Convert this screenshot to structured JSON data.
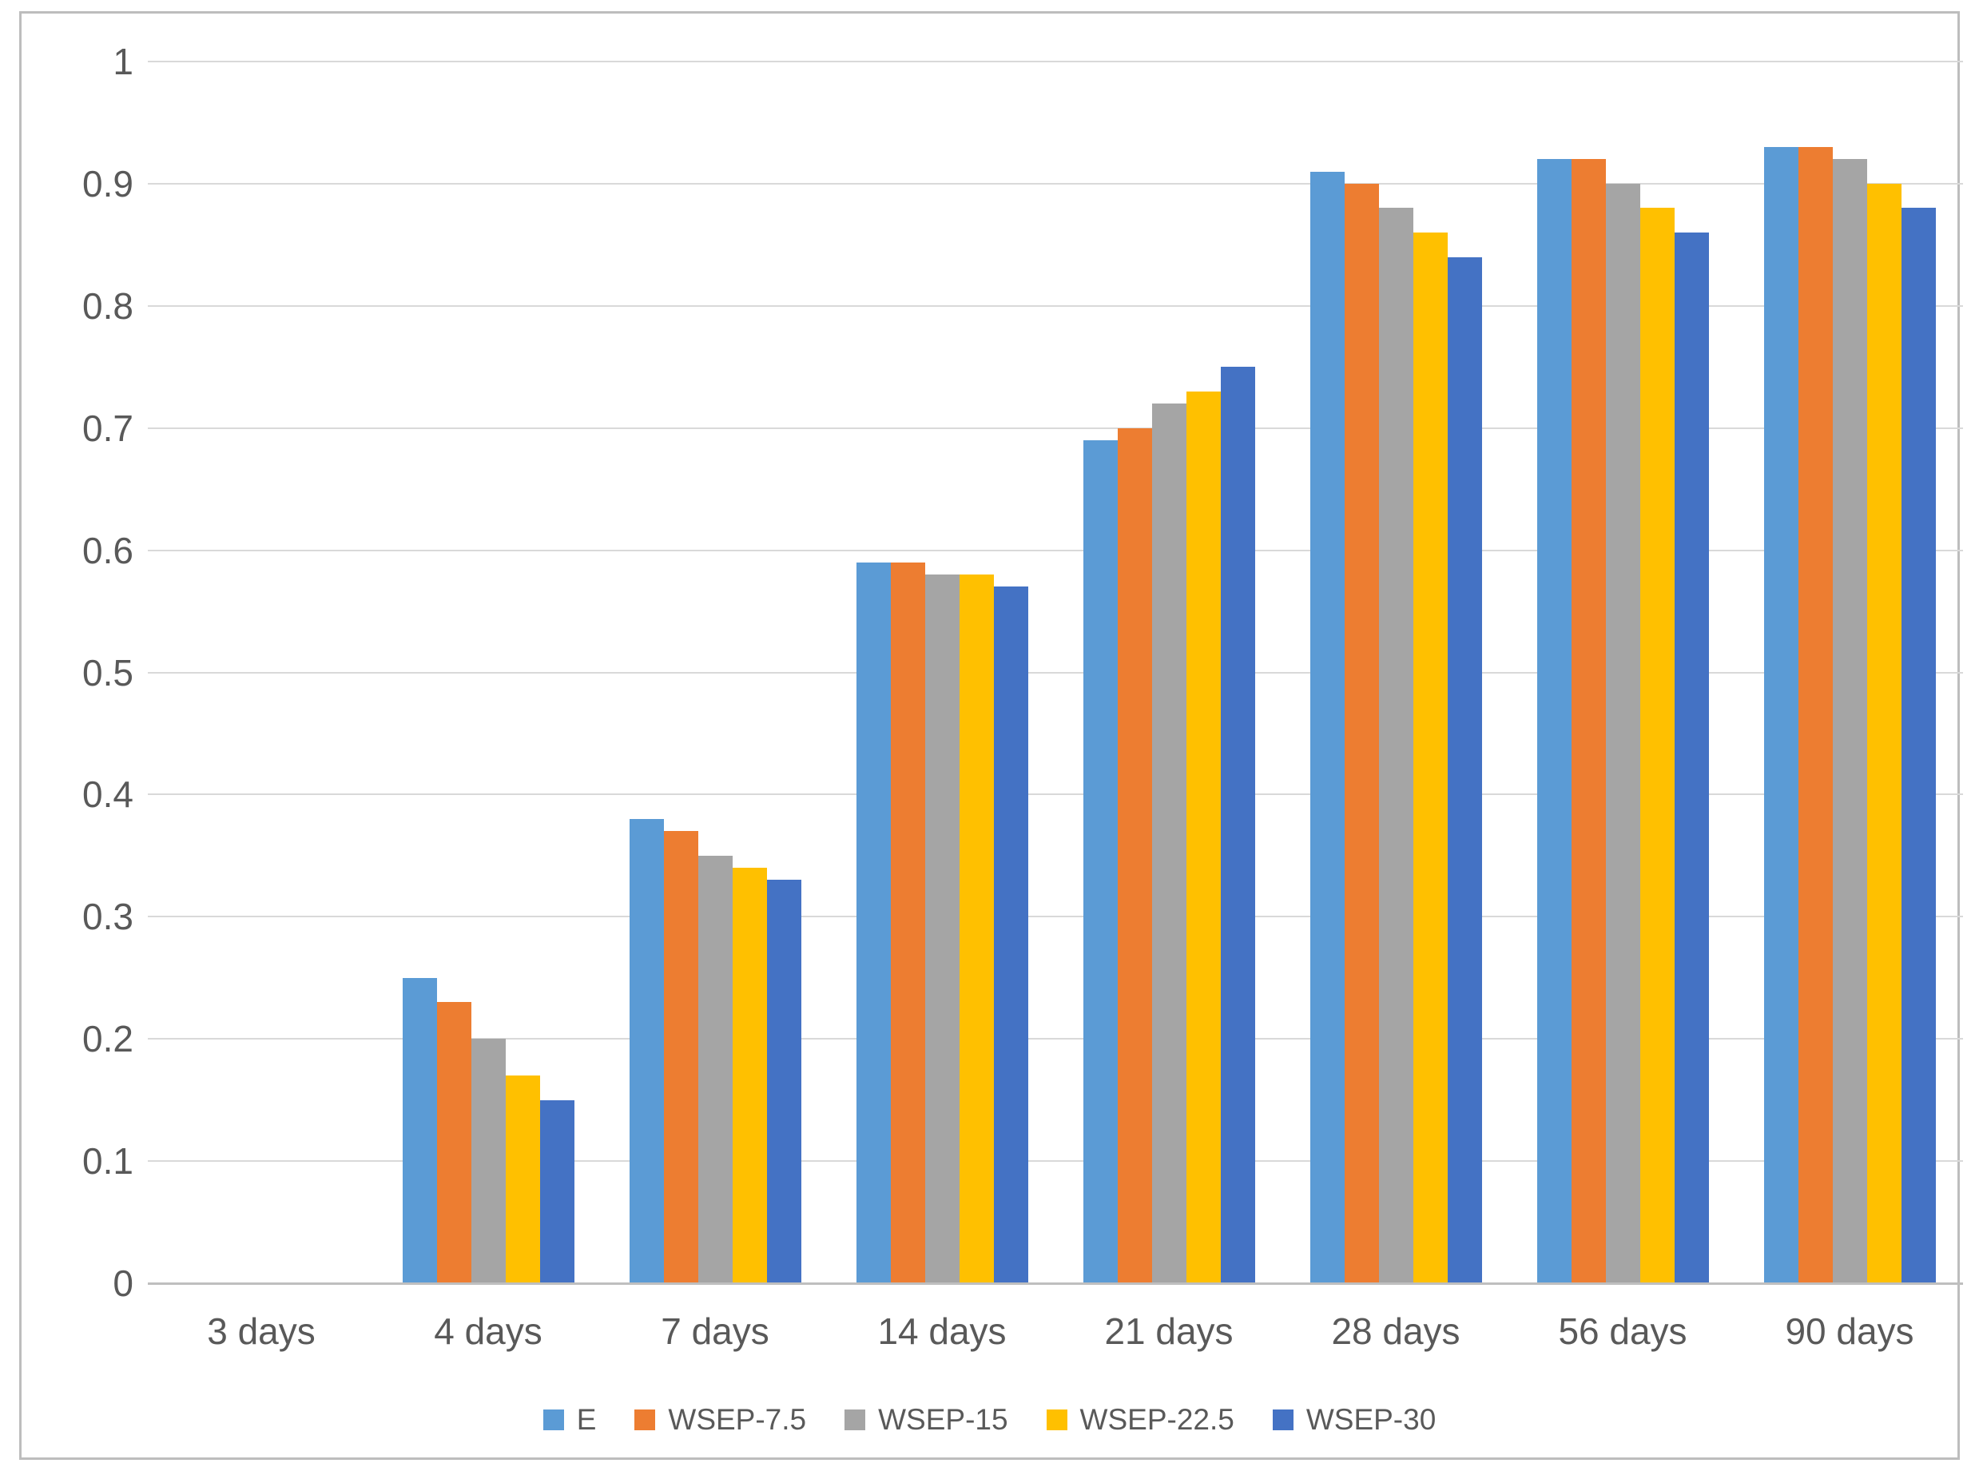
{
  "figure": {
    "background_color": "#ffffff",
    "border_color": "#bdbdbd",
    "gridline_color": "#d9d9d9",
    "axis_line_color": "#bfbfbf",
    "text_color": "#595959"
  },
  "chart_data": {
    "type": "bar",
    "title": "",
    "xlabel": "",
    "ylabel": "",
    "ylim": [
      0,
      1
    ],
    "grid": true,
    "legend_position": "bottom-center",
    "y_ticks": [
      {
        "label": "1",
        "value": 1.0
      },
      {
        "label": "0.9",
        "value": 0.9
      },
      {
        "label": "0.8",
        "value": 0.8
      },
      {
        "label": "0.7",
        "value": 0.7
      },
      {
        "label": "0.6",
        "value": 0.6
      },
      {
        "label": "0.5",
        "value": 0.5
      },
      {
        "label": "0.4",
        "value": 0.4
      },
      {
        "label": "0.3",
        "value": 0.3
      },
      {
        "label": "0.2",
        "value": 0.2
      },
      {
        "label": "0.1",
        "value": 0.1
      },
      {
        "label": "0",
        "value": 0.0
      }
    ],
    "categories": [
      "3 days",
      "4 days",
      "7 days",
      "14 days",
      "21 days",
      "28 days",
      "56 days",
      "90 days"
    ],
    "series": [
      {
        "name": "E",
        "color": "#5B9BD5",
        "values": [
          0,
          0.25,
          0.38,
          0.59,
          0.69,
          0.91,
          0.92,
          0.93
        ]
      },
      {
        "name": "WSEP-7.5",
        "color": "#ED7D31",
        "values": [
          0,
          0.23,
          0.37,
          0.59,
          0.7,
          0.9,
          0.92,
          0.93
        ]
      },
      {
        "name": "WSEP-15",
        "color": "#A5A5A5",
        "values": [
          0,
          0.2,
          0.35,
          0.58,
          0.72,
          0.88,
          0.9,
          0.92
        ]
      },
      {
        "name": "WSEP-22.5",
        "color": "#FFC000",
        "values": [
          0,
          0.17,
          0.34,
          0.58,
          0.73,
          0.86,
          0.88,
          0.9
        ]
      },
      {
        "name": "WSEP-30",
        "color": "#4472C4",
        "values": [
          0,
          0.15,
          0.33,
          0.57,
          0.75,
          0.84,
          0.86,
          0.88
        ]
      }
    ]
  }
}
